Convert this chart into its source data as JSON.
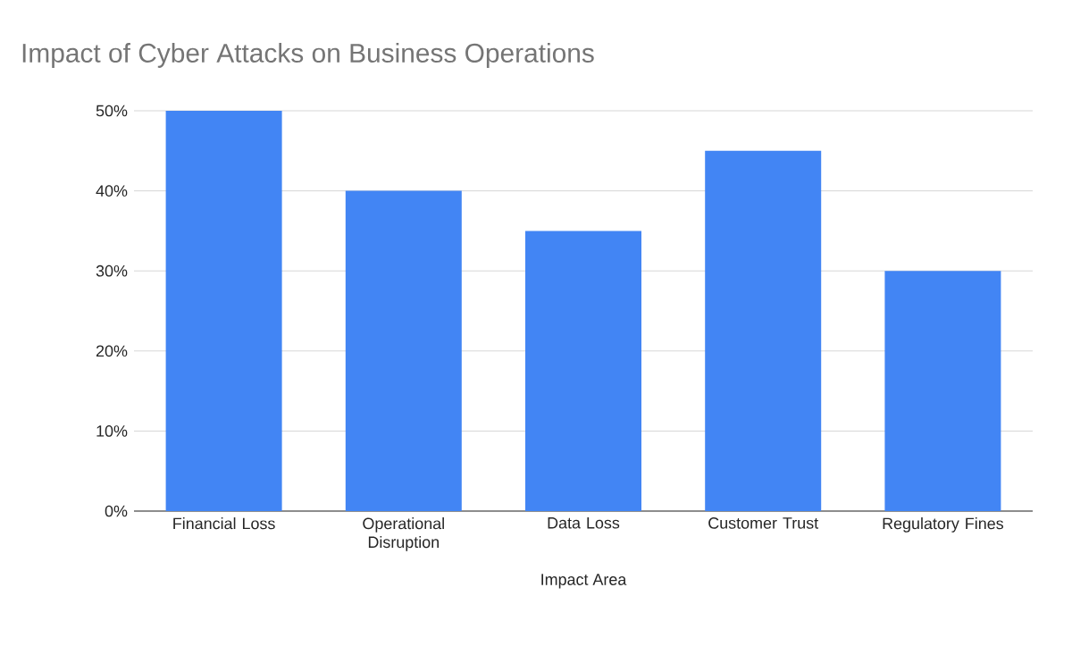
{
  "chart_data": {
    "type": "bar",
    "title": "Impact of Cyber Attacks on Business Operations",
    "xlabel": "Impact Area",
    "categories": [
      "Financial Loss",
      "Operational Disruption",
      "Data Loss",
      "Customer Trust",
      "Regulatory Fines"
    ],
    "values": [
      50,
      40,
      35,
      45,
      30
    ],
    "color": "#4285f4",
    "ylim": [
      0,
      50
    ],
    "yticks": [
      {
        "value": 0,
        "label": "0%"
      },
      {
        "value": 10,
        "label": "10%"
      },
      {
        "value": 20,
        "label": "20%"
      },
      {
        "value": 30,
        "label": "30%"
      },
      {
        "value": 40,
        "label": "40%"
      },
      {
        "value": 50,
        "label": "50%"
      }
    ],
    "grid": "y"
  }
}
